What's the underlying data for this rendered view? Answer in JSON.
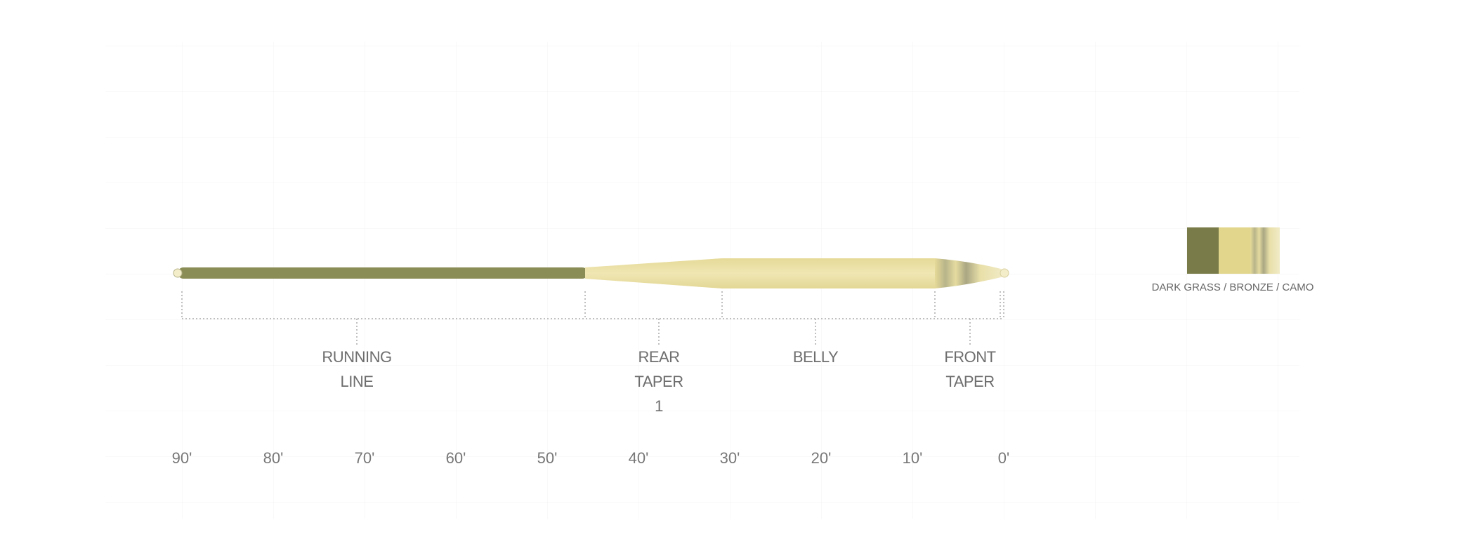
{
  "diagram": {
    "sections": [
      {
        "lines": [
          "RUNNING",
          "LINE"
        ]
      },
      {
        "lines": [
          "REAR",
          "TAPER",
          "1"
        ]
      },
      {
        "lines": [
          "BELLY"
        ]
      },
      {
        "lines": [
          "FRONT",
          "TAPER"
        ]
      }
    ],
    "scale_labels": [
      "90'",
      "80'",
      "70'",
      "60'",
      "50'",
      "40'",
      "30'",
      "20'",
      "10'",
      "0'"
    ],
    "color_label": "DARK GRASS / BRONZE / CAMO"
  }
}
